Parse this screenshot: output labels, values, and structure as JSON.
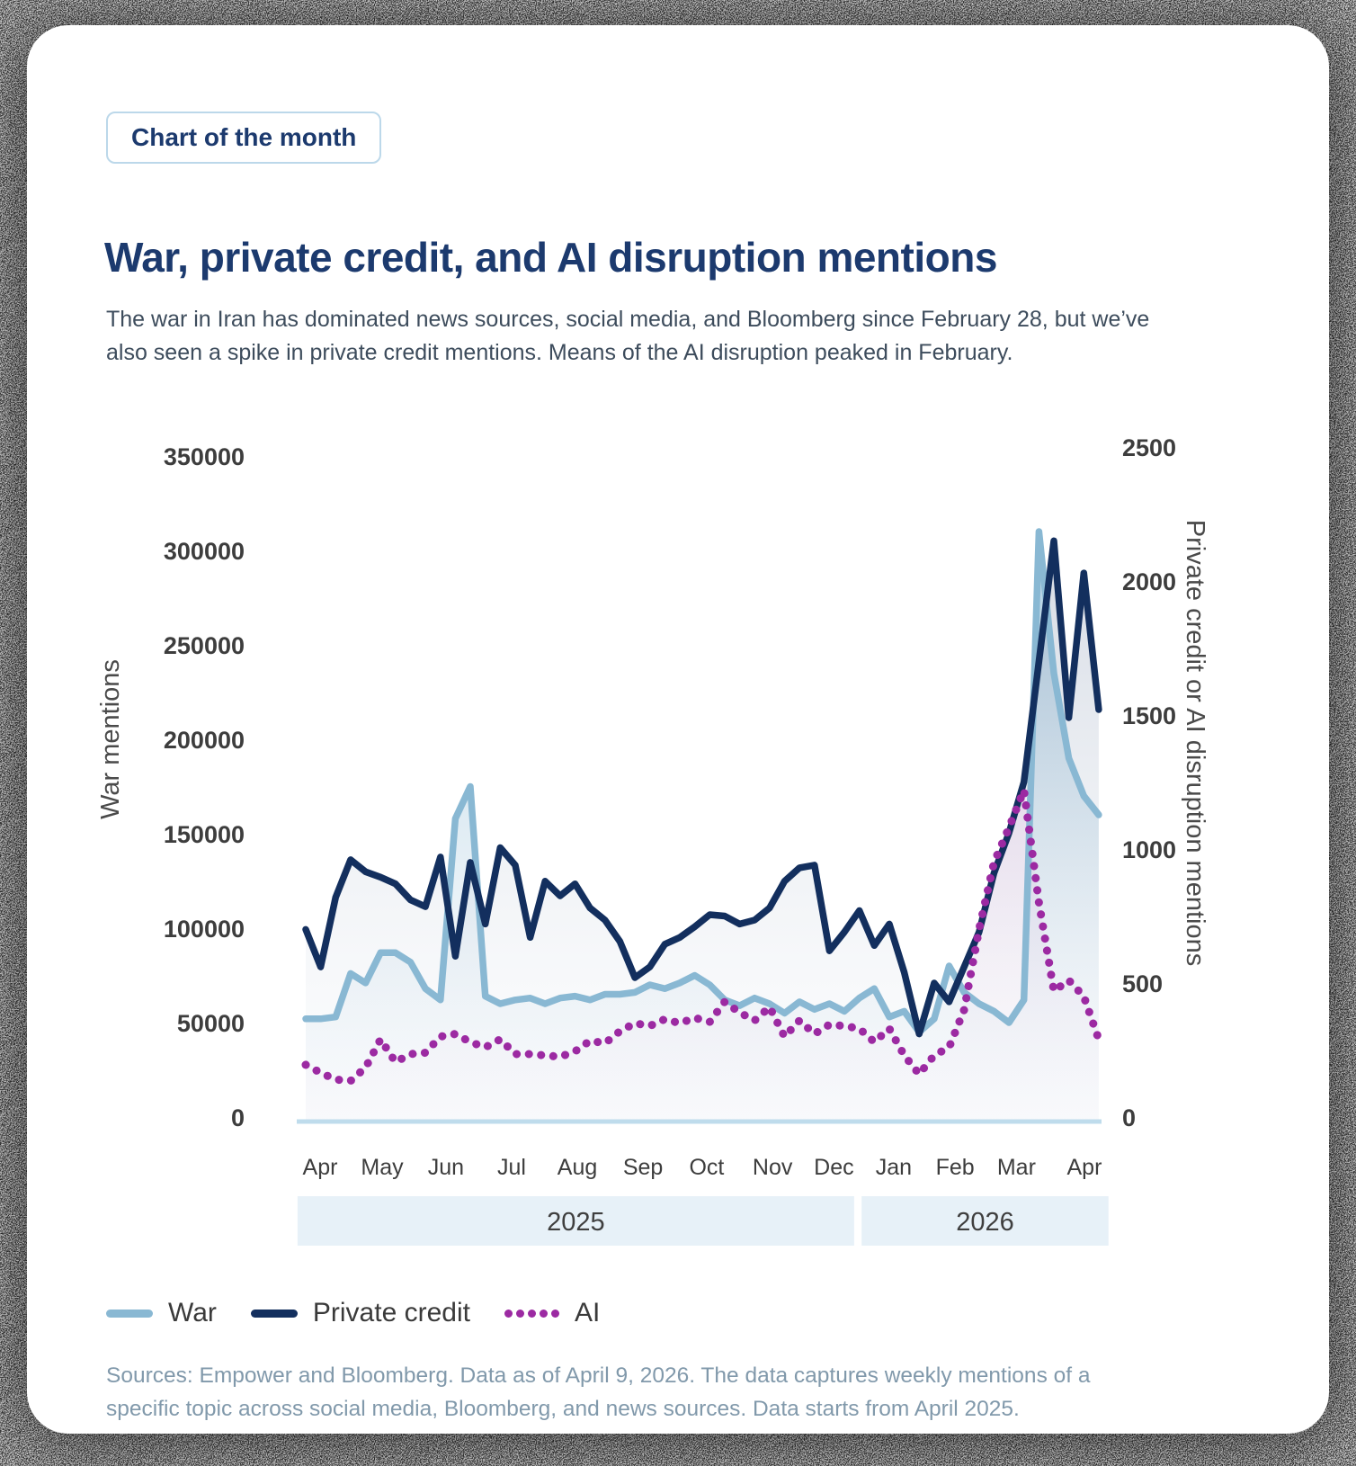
{
  "badge": "Chart of the month",
  "title": "War, private credit, and AI disruption mentions",
  "subtitle": "The war in Iran has dominated news sources, social media, and Bloomberg since February 28, but we’ve also seen a spike in private credit mentions. Means of the AI disruption peaked in February.",
  "footer": "Sources: Empower and Bloomberg. Data as of April 9, 2026. The data captures weekly mentions of a specific topic across social media, Bloomberg, and news sources. Data starts from April 2025.",
  "colors": {
    "accent_navy": "#1c3a6e",
    "war_line": "#89b8d3",
    "credit_line": "#132f5e",
    "ai_line": "#9c2aa2",
    "year_band_bg": "#e7f1f8",
    "baseline": "#bfdcec",
    "tick_text": "#3d3d3d",
    "footer_text": "#8199ab"
  },
  "legend": {
    "items": [
      {
        "label": "War",
        "swatch": "line",
        "color": "#89b8d3"
      },
      {
        "label": "Private credit",
        "swatch": "line",
        "color": "#132f5e"
      },
      {
        "label": "AI",
        "swatch": "dots",
        "color": "#9c2aa2"
      }
    ]
  },
  "chart_data": {
    "type": "line",
    "x_unit": "weekly, April 2025 through April 9, 2026",
    "left_axis": {
      "label": "War mentions",
      "ticks": [
        0,
        50000,
        100000,
        150000,
        200000,
        250000,
        300000,
        350000
      ],
      "max": 350000
    },
    "right_axis": {
      "label": "Private credit or AI disruption mentions",
      "ticks": [
        0,
        500,
        1000,
        1500,
        2000,
        2500
      ],
      "max": 2500
    },
    "months": [
      {
        "label": "Apr",
        "week": 0.96
      },
      {
        "label": "May",
        "week": 5.11
      },
      {
        "label": "Jun",
        "week": 9.37
      },
      {
        "label": "Jul",
        "week": 13.76
      },
      {
        "label": "Aug",
        "week": 18.15
      },
      {
        "label": "Sep",
        "week": 22.54
      },
      {
        "label": "Oct",
        "week": 26.8
      },
      {
        "label": "Nov",
        "week": 31.2
      },
      {
        "label": "Dec",
        "week": 35.3
      },
      {
        "label": "Jan",
        "week": 39.3
      },
      {
        "label": "Feb",
        "week": 43.4
      },
      {
        "label": "Mar",
        "week": 47.5
      },
      {
        "label": "Apr",
        "week": 52.04
      }
    ],
    "year_bands": [
      {
        "label": "2025",
        "from_week": -0.55,
        "to_week": 36.65
      },
      {
        "label": "2026",
        "from_week": 37.15,
        "to_week": 53.65
      }
    ],
    "series": [
      {
        "name": "War",
        "axis": "left",
        "style": "solid",
        "color": "#89b8d3",
        "fill_top": "rgba(137,184,211,0.85)",
        "fill_bottom": "rgba(222,234,243,0.10)",
        "values": [
          52000,
          52000,
          53000,
          76000,
          71000,
          87000,
          87000,
          82000,
          68000,
          62000,
          158000,
          175000,
          64000,
          60000,
          62000,
          63000,
          60000,
          63000,
          64000,
          62000,
          65000,
          65000,
          66000,
          70000,
          68000,
          71000,
          75000,
          70000,
          62000,
          59000,
          63000,
          60000,
          55000,
          61000,
          57000,
          60000,
          56000,
          63000,
          68000,
          53000,
          56000,
          45000,
          52000,
          80000,
          66000,
          60000,
          56000,
          50000,
          62000,
          310000,
          235000,
          190000,
          170000,
          160000
        ]
      },
      {
        "name": "Private credit",
        "axis": "right",
        "style": "solid",
        "color": "#132f5e",
        "fill_top": "rgba(96,117,152,0.32)",
        "fill_bottom": "rgba(230,236,243,0.10)",
        "values": [
          700,
          560,
          820,
          960,
          915,
          895,
          870,
          810,
          785,
          970,
          600,
          950,
          720,
          1005,
          940,
          670,
          880,
          825,
          870,
          780,
          735,
          655,
          520,
          560,
          645,
          670,
          710,
          755,
          750,
          720,
          735,
          780,
          880,
          930,
          940,
          620,
          690,
          770,
          640,
          720,
          540,
          310,
          500,
          430,
          560,
          690,
          910,
          1060,
          1250,
          1700,
          2150,
          1490,
          2030,
          1520
        ]
      },
      {
        "name": "AI",
        "axis": "right",
        "style": "dotted",
        "color": "#9c2aa2",
        "fill_top": "rgba(186,107,188,0.45)",
        "fill_bottom": "rgba(240,230,242,0.08)",
        "values": [
          195,
          165,
          140,
          135,
          185,
          290,
          205,
          235,
          240,
          300,
          310,
          280,
          260,
          290,
          235,
          235,
          230,
          225,
          245,
          285,
          275,
          320,
          350,
          340,
          365,
          350,
          370,
          355,
          430,
          390,
          360,
          410,
          300,
          360,
          310,
          345,
          340,
          330,
          280,
          330,
          230,
          160,
          230,
          260,
          400,
          700,
          950,
          1080,
          1220,
          800,
          470,
          510,
          450,
          290
        ]
      }
    ]
  }
}
